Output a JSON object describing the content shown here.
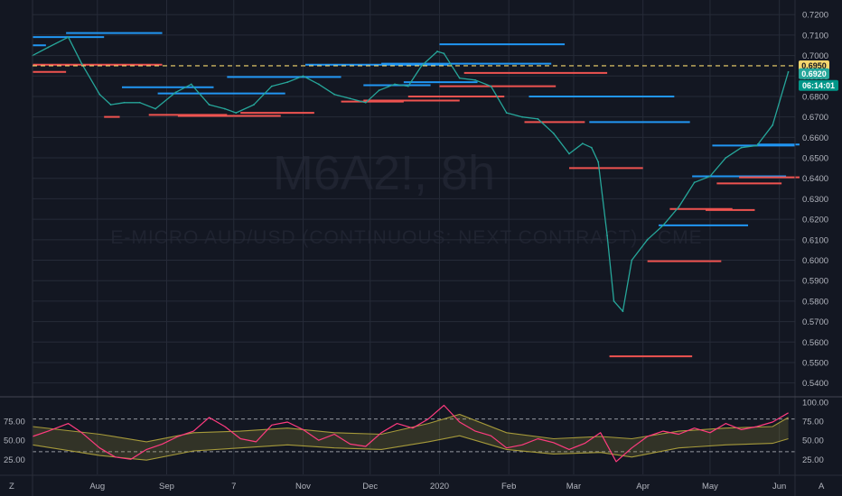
{
  "colors": {
    "background": "#131722",
    "grid": "#262b38",
    "axis_text": "#b2b5be",
    "price_line": "#26a69a",
    "resistance": "#2196f3",
    "support": "#ef5350",
    "alert_line": "#f5d76e",
    "rsi": "#ff3b7f",
    "band": "#a69a3a",
    "badge_alert": "#f5d76e",
    "badge_last": "#26a69a",
    "badge_timer": "#009688"
  },
  "watermark": {
    "symbol": "M6A2!, 8h",
    "description": "E-MICRO AUD/USD (CONTINUOUS: NEXT CONTRACT) · CME"
  },
  "badges": {
    "alert_price": "0.6950",
    "last_price": "0.6920",
    "countdown": "06:14:01"
  },
  "footer": {
    "left_icon": "Z",
    "right_icon": "A"
  },
  "chart_data": [
    {
      "type": "line",
      "pane": "price",
      "y_axis_labels": [
        "0.7200",
        "0.7100",
        "0.7000",
        "0.6900",
        "0.6800",
        "0.6700",
        "0.6600",
        "0.6500",
        "0.6400",
        "0.6300",
        "0.6200",
        "0.6100",
        "0.6000",
        "0.5900",
        "0.5800",
        "0.5700",
        "0.5600",
        "0.5500",
        "0.5400"
      ],
      "ylim": [
        0.535,
        0.7245
      ],
      "x_tick_labels": [
        "Aug",
        "Sep",
        "7",
        "Nov",
        "Dec",
        "2020",
        "Feb",
        "Mar",
        "Apr",
        "May",
        "Jun"
      ],
      "x_tick_dates": [
        "2019-08-01",
        "2019-09-01",
        "2019-10-01",
        "2019-11-01",
        "2019-12-01",
        "2020-01-01",
        "2020-02-01",
        "2020-03-01",
        "2020-04-01",
        "2020-05-01",
        "2020-06-01"
      ],
      "xlim": [
        "2019-07-03",
        "2020-06-08"
      ],
      "series": [
        {
          "x": [
            "2019-07-03",
            "2019-07-10",
            "2019-07-19",
            "2019-07-25",
            "2019-08-02",
            "2019-08-07",
            "2019-08-13",
            "2019-08-20",
            "2019-08-27",
            "2019-09-05",
            "2019-09-12",
            "2019-09-20",
            "2019-09-27",
            "2019-10-02",
            "2019-10-10",
            "2019-10-18",
            "2019-10-25",
            "2019-11-01",
            "2019-11-08",
            "2019-11-15",
            "2019-11-22",
            "2019-11-29",
            "2019-12-05",
            "2019-12-12",
            "2019-12-18",
            "2019-12-24",
            "2019-12-31",
            "2020-01-03",
            "2020-01-10",
            "2020-01-17",
            "2020-01-24",
            "2020-01-31",
            "2020-02-07",
            "2020-02-14",
            "2020-02-21",
            "2020-02-28",
            "2020-03-05",
            "2020-03-09",
            "2020-03-12",
            "2020-03-16",
            "2020-03-19",
            "2020-03-23",
            "2020-03-27",
            "2020-04-03",
            "2020-04-10",
            "2020-04-17",
            "2020-04-24",
            "2020-05-01",
            "2020-05-08",
            "2020-05-15",
            "2020-05-22",
            "2020-05-29",
            "2020-06-05"
          ],
          "y": [
            0.7,
            0.704,
            0.709,
            0.696,
            0.681,
            0.676,
            0.677,
            0.677,
            0.674,
            0.682,
            0.686,
            0.676,
            0.674,
            0.672,
            0.676,
            0.685,
            0.687,
            0.69,
            0.686,
            0.681,
            0.679,
            0.677,
            0.683,
            0.686,
            0.685,
            0.695,
            0.702,
            0.701,
            0.689,
            0.688,
            0.685,
            0.672,
            0.67,
            0.669,
            0.662,
            0.652,
            0.657,
            0.655,
            0.648,
            0.612,
            0.58,
            0.575,
            0.6,
            0.61,
            0.617,
            0.626,
            0.638,
            0.641,
            0.65,
            0.655,
            0.656,
            0.666,
            0.692
          ]
        }
      ],
      "resistance_levels": [
        {
          "from": "2019-07-03",
          "to": "2019-08-04",
          "y": 0.709
        },
        {
          "from": "2019-07-18",
          "to": "2019-08-30",
          "y": 0.711
        },
        {
          "from": "2019-07-03",
          "to": "2019-07-09",
          "y": 0.705
        },
        {
          "from": "2019-08-12",
          "to": "2019-09-22",
          "y": 0.6845
        },
        {
          "from": "2019-08-28",
          "to": "2019-10-24",
          "y": 0.6815
        },
        {
          "from": "2019-09-28",
          "to": "2019-11-18",
          "y": 0.6895
        },
        {
          "from": "2019-11-02",
          "to": "2020-01-05",
          "y": 0.6955
        },
        {
          "from": "2019-12-06",
          "to": "2020-02-20",
          "y": 0.696
        },
        {
          "from": "2019-11-28",
          "to": "2019-12-28",
          "y": 0.6855
        },
        {
          "from": "2019-12-16",
          "to": "2020-01-18",
          "y": 0.687
        },
        {
          "from": "2020-01-01",
          "to": "2020-02-26",
          "y": 0.7055
        },
        {
          "from": "2020-02-10",
          "to": "2020-04-15",
          "y": 0.68
        },
        {
          "from": "2020-03-08",
          "to": "2020-04-22",
          "y": 0.6675
        },
        {
          "from": "2020-04-08",
          "to": "2020-05-18",
          "y": 0.617
        },
        {
          "from": "2020-04-23",
          "to": "2020-06-04",
          "y": 0.641
        },
        {
          "from": "2020-05-02",
          "to": "2020-06-08",
          "y": 0.656
        },
        {
          "from": "2020-05-22",
          "to": "2020-06-10",
          "y": 0.6565
        }
      ],
      "support_levels": [
        {
          "from": "2019-07-03",
          "to": "2019-08-30",
          "y": 0.6955
        },
        {
          "from": "2019-07-03",
          "to": "2019-07-18",
          "y": 0.692
        },
        {
          "from": "2019-08-04",
          "to": "2019-08-11",
          "y": 0.67
        },
        {
          "from": "2019-08-24",
          "to": "2019-09-28",
          "y": 0.671
        },
        {
          "from": "2019-09-06",
          "to": "2019-10-22",
          "y": 0.6705
        },
        {
          "from": "2019-10-04",
          "to": "2019-11-06",
          "y": 0.672
        },
        {
          "from": "2019-11-18",
          "to": "2019-12-16",
          "y": 0.6775
        },
        {
          "from": "2019-11-28",
          "to": "2020-01-10",
          "y": 0.678
        },
        {
          "from": "2019-12-18",
          "to": "2020-01-30",
          "y": 0.68
        },
        {
          "from": "2020-01-01",
          "to": "2020-02-22",
          "y": 0.685
        },
        {
          "from": "2020-01-12",
          "to": "2020-03-16",
          "y": 0.6915
        },
        {
          "from": "2020-02-08",
          "to": "2020-03-06",
          "y": 0.6675
        },
        {
          "from": "2020-02-28",
          "to": "2020-04-01",
          "y": 0.645
        },
        {
          "from": "2020-03-17",
          "to": "2020-04-23",
          "y": 0.553
        },
        {
          "from": "2020-04-03",
          "to": "2020-05-06",
          "y": 0.5995
        },
        {
          "from": "2020-04-13",
          "to": "2020-05-11",
          "y": 0.625
        },
        {
          "from": "2020-04-29",
          "to": "2020-05-21",
          "y": 0.6245
        },
        {
          "from": "2020-05-04",
          "to": "2020-06-02",
          "y": 0.6375
        },
        {
          "from": "2020-05-14",
          "to": "2020-06-10",
          "y": 0.6405
        }
      ]
    },
    {
      "type": "line",
      "pane": "indicator",
      "y_axis_labels": [
        "100.00",
        "75.00",
        "50.00",
        "25.00"
      ],
      "left_axis_labels": [
        "75.00",
        "50.00",
        "25.00"
      ],
      "ylim": [
        10,
        100
      ],
      "reference_lines": [
        78,
        35
      ],
      "series": [
        {
          "x": [
            "2019-07-03",
            "2019-07-10",
            "2019-07-19",
            "2019-07-25",
            "2019-08-02",
            "2019-08-09",
            "2019-08-16",
            "2019-08-23",
            "2019-08-30",
            "2019-09-06",
            "2019-09-13",
            "2019-09-20",
            "2019-09-27",
            "2019-10-04",
            "2019-10-11",
            "2019-10-18",
            "2019-10-25",
            "2019-11-01",
            "2019-11-08",
            "2019-11-15",
            "2019-11-22",
            "2019-11-29",
            "2019-12-06",
            "2019-12-13",
            "2019-12-20",
            "2019-12-27",
            "2020-01-03",
            "2020-01-10",
            "2020-01-17",
            "2020-01-24",
            "2020-01-31",
            "2020-02-07",
            "2020-02-14",
            "2020-02-21",
            "2020-02-28",
            "2020-03-06",
            "2020-03-13",
            "2020-03-20",
            "2020-03-27",
            "2020-04-03",
            "2020-04-10",
            "2020-04-17",
            "2020-04-24",
            "2020-05-01",
            "2020-05-08",
            "2020-05-15",
            "2020-05-22",
            "2020-05-29",
            "2020-06-05"
          ],
          "y": [
            55,
            62,
            72,
            60,
            40,
            28,
            25,
            38,
            45,
            55,
            62,
            80,
            68,
            52,
            48,
            70,
            74,
            64,
            50,
            58,
            45,
            42,
            60,
            72,
            66,
            78,
            96,
            74,
            62,
            56,
            40,
            44,
            52,
            47,
            38,
            46,
            60,
            22,
            40,
            55,
            62,
            58,
            66,
            60,
            72,
            64,
            68,
            74,
            86
          ]
        },
        {
          "name": "upper",
          "x": [
            "2019-07-03",
            "2019-08-02",
            "2019-08-23",
            "2019-09-13",
            "2019-10-04",
            "2019-10-25",
            "2019-11-15",
            "2019-12-06",
            "2019-12-27",
            "2020-01-10",
            "2020-01-31",
            "2020-02-21",
            "2020-03-13",
            "2020-03-27",
            "2020-04-17",
            "2020-05-08",
            "2020-05-29",
            "2020-06-05"
          ],
          "y": [
            68,
            58,
            48,
            60,
            62,
            66,
            60,
            58,
            72,
            84,
            60,
            52,
            55,
            52,
            62,
            66,
            68,
            80
          ]
        },
        {
          "name": "lower",
          "x": [
            "2019-07-03",
            "2019-08-02",
            "2019-08-23",
            "2019-09-13",
            "2019-10-04",
            "2019-10-25",
            "2019-11-15",
            "2019-12-06",
            "2019-12-27",
            "2020-01-10",
            "2020-01-31",
            "2020-02-21",
            "2020-03-13",
            "2020-03-27",
            "2020-04-17",
            "2020-05-08",
            "2020-05-29",
            "2020-06-05"
          ],
          "y": [
            44,
            30,
            24,
            36,
            40,
            44,
            40,
            38,
            48,
            56,
            38,
            32,
            34,
            28,
            40,
            44,
            46,
            52
          ]
        }
      ]
    }
  ]
}
